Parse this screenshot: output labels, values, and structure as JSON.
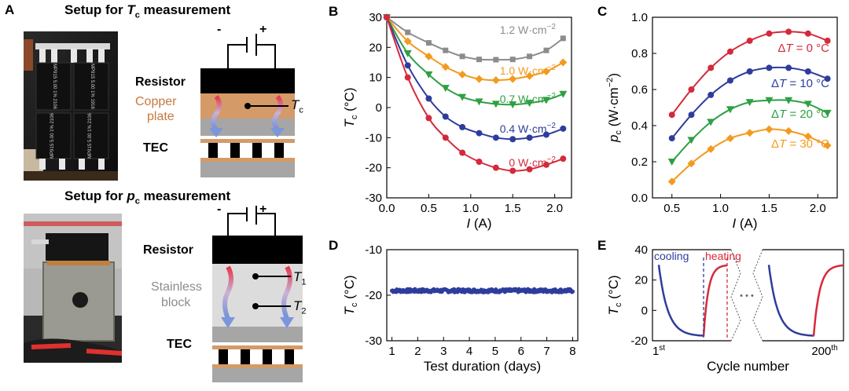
{
  "panels": {
    "a": "A",
    "b": "B",
    "c": "C",
    "d": "D",
    "e": "E"
  },
  "setup_tc": {
    "title_prefix": "Setup for",
    "title_var": "T",
    "title_sub": "c",
    "title_suffix": "measurement",
    "resistor": "Resistor",
    "copper_line1": "Copper",
    "copper_line2": "plate",
    "tec": "TEC",
    "minus": "-",
    "plus": "+",
    "probe_var": "T",
    "probe_sub": "c"
  },
  "setup_pc": {
    "title_prefix": "Setup for",
    "title_var": "p",
    "title_sub": "c",
    "title_suffix": "measurement",
    "resistor": "Resistor",
    "block_line1": "Stainless",
    "block_line2": "block",
    "tec": "TEC",
    "minus": "-",
    "plus": "+",
    "probe1_var": "T",
    "probe1_sub": "1",
    "probe2_var": "T",
    "probe2_sub": "2"
  },
  "photo_tc": {
    "resistor_text_1": "MP915 5.00 1% 2106",
    "resistor_text_2": "MP915 5.00 1% 1916",
    "resistor_text_3": "MP915 5.00 1% 2106",
    "resistor_text_4": "MP915 5.00 1% 2106"
  },
  "colors": {
    "gray": "#8c8c8c",
    "orange": "#f39a1e",
    "green": "#2ea043",
    "blue": "#2e3d9c",
    "red": "#d42a3c",
    "copper": "#d49a68",
    "tec_gray": "#a6a6a6"
  },
  "chart_data": [
    {
      "id": "B",
      "type": "line",
      "xlabel_var": "I",
      "xlabel_unit": "(A)",
      "ylabel_var": "T",
      "ylabel_sub": "c",
      "ylabel_unit": "(°C)",
      "xlim": [
        0,
        2.2
      ],
      "ylim": [
        -30,
        30
      ],
      "xticks": [
        0.0,
        0.5,
        1.0,
        1.5,
        2.0
      ],
      "xtick_labels": [
        "0.0",
        "0.5",
        "1.0",
        "1.5",
        "2.0"
      ],
      "yticks": [
        -30,
        -20,
        -10,
        0,
        10,
        20,
        30
      ],
      "ytick_labels": [
        "-30",
        "-20",
        "-10",
        "0",
        "10",
        "20",
        "30"
      ],
      "x": [
        0,
        0.25,
        0.5,
        0.7,
        0.9,
        1.1,
        1.3,
        1.5,
        1.7,
        1.9,
        2.1
      ],
      "series": [
        {
          "name": "1.2 W·cm⁻²",
          "label_value": "1.2 W·cm",
          "label_exp": "−2",
          "color": "#8c8c8c",
          "marker": "square",
          "values": [
            30,
            25,
            21.5,
            19,
            17,
            16,
            15.9,
            16,
            17,
            19,
            23
          ]
        },
        {
          "name": "1.0 W·cm⁻²",
          "label_value": "1.0 W·cm",
          "label_exp": "−2",
          "color": "#f39a1e",
          "marker": "diamond",
          "values": [
            30,
            22,
            17,
            13.5,
            11,
            9.5,
            9.1,
            9.5,
            10.5,
            12,
            15
          ]
        },
        {
          "name": "0.7 W·cm⁻²",
          "label_value": "0.7 W·cm",
          "label_exp": "−2",
          "color": "#2ea043",
          "marker": "triangle-down",
          "values": [
            30,
            18,
            11,
            6.5,
            3.5,
            2,
            1.2,
            1,
            1.5,
            2.5,
            4.5
          ]
        },
        {
          "name": "0.4 W·cm⁻²",
          "label_value": "0.4 W·cm",
          "label_exp": "−2",
          "color": "#2e3d9c",
          "marker": "circle",
          "values": [
            30,
            14,
            3,
            -3,
            -6.5,
            -8.5,
            -10,
            -10.5,
            -10,
            -9,
            -7
          ]
        },
        {
          "name": "0 W·cm⁻²",
          "label_value": "0 W·cm",
          "label_exp": "−2",
          "color": "#d42a3c",
          "marker": "circle",
          "values": [
            30,
            10,
            -3.5,
            -10,
            -15,
            -18,
            -20,
            -21,
            -20.5,
            -19,
            -17
          ]
        }
      ]
    },
    {
      "id": "C",
      "type": "line",
      "xlabel_var": "I",
      "xlabel_unit": "(A)",
      "ylabel_var": "p",
      "ylabel_sub": "c",
      "ylabel_unit": "(W·cm",
      "ylabel_exp": "−2",
      "ylabel_close": ")",
      "xlim": [
        0.3,
        2.2
      ],
      "ylim": [
        0.0,
        1.0
      ],
      "xticks": [
        0.5,
        1.0,
        1.5,
        2.0
      ],
      "xtick_labels": [
        "0.5",
        "1.0",
        "1.5",
        "2.0"
      ],
      "yticks": [
        0.0,
        0.2,
        0.4,
        0.6,
        0.8,
        1.0
      ],
      "ytick_labels": [
        "0.0",
        "0.2",
        "0.4",
        "0.6",
        "0.8",
        "1.0"
      ],
      "x": [
        0.5,
        0.7,
        0.9,
        1.1,
        1.3,
        1.5,
        1.7,
        1.9,
        2.1
      ],
      "series": [
        {
          "name": "ΔT = 0 °C",
          "label_pre": "Δ",
          "label_var": "T",
          "label_post": " = 0 °C",
          "color": "#d42a3c",
          "marker": "circle",
          "values": [
            0.46,
            0.6,
            0.72,
            0.81,
            0.87,
            0.91,
            0.92,
            0.91,
            0.87
          ]
        },
        {
          "name": "ΔT = 10 °C",
          "label_pre": "Δ",
          "label_var": "T",
          "label_post": " = 10 °C",
          "color": "#2e3d9c",
          "marker": "circle",
          "values": [
            0.33,
            0.46,
            0.57,
            0.65,
            0.7,
            0.72,
            0.72,
            0.7,
            0.66
          ]
        },
        {
          "name": "ΔT = 20 °C",
          "label_pre": "Δ",
          "label_var": "T",
          "label_post": " = 20 °C",
          "color": "#2ea043",
          "marker": "triangle-down",
          "values": [
            0.2,
            0.32,
            0.42,
            0.49,
            0.53,
            0.54,
            0.54,
            0.52,
            0.47
          ]
        },
        {
          "name": "ΔT = 30 °C",
          "label_pre": "Δ",
          "label_var": "T",
          "label_post": " = 30 °C",
          "color": "#f39a1e",
          "marker": "diamond",
          "values": [
            0.09,
            0.19,
            0.27,
            0.33,
            0.36,
            0.38,
            0.37,
            0.34,
            0.29
          ]
        }
      ]
    },
    {
      "id": "D",
      "type": "scatter",
      "xlabel": "Test duration (days)",
      "ylabel_var": "T",
      "ylabel_sub": "c",
      "ylabel_unit": "(°C)",
      "xlim": [
        0.8,
        8.2
      ],
      "ylim": [
        -30,
        -10
      ],
      "xticks": [
        1,
        2,
        3,
        4,
        5,
        6,
        7,
        8
      ],
      "xtick_labels": [
        "1",
        "2",
        "3",
        "4",
        "5",
        "6",
        "7",
        "8"
      ],
      "yticks": [
        -30,
        -20,
        -10
      ],
      "ytick_labels": [
        "-30",
        "-20",
        "-10"
      ],
      "mean": -19,
      "spread": 0.35,
      "color": "#2e3d9c"
    },
    {
      "id": "E",
      "type": "line",
      "xlabel": "Cycle number",
      "ylabel_var": "T",
      "ylabel_sub": "c",
      "ylabel_unit": "(°C)",
      "ylim": [
        -20,
        40
      ],
      "yticks": [
        -20,
        0,
        20,
        40
      ],
      "ytick_labels": [
        "-20",
        "0",
        "20",
        "40"
      ],
      "start_label": "1",
      "start_sup": "st",
      "end_label": "200",
      "end_sup": "th",
      "cooling_label": "cooling",
      "heating_label": "heating",
      "ellipsis": "• • •",
      "cooling_color": "#2e3d9c",
      "heating_color": "#d42a3c",
      "temp_max": 30,
      "temp_min": -17
    }
  ]
}
